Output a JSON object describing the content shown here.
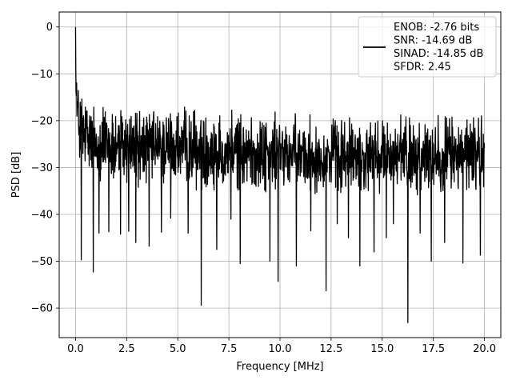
{
  "chart_data": {
    "type": "line",
    "xlabel": "Frequency [MHz]",
    "ylabel": "PSD [dB]",
    "xlim": [
      -0.8,
      20.8
    ],
    "ylim": [
      -66.3,
      3.2
    ],
    "x_ticks": [
      0.0,
      2.5,
      5.0,
      7.5,
      10.0,
      12.5,
      15.0,
      17.5,
      20.0
    ],
    "x_tick_labels": [
      "0.0",
      "2.5",
      "5.0",
      "7.5",
      "10.0",
      "12.5",
      "15.0",
      "17.5",
      "20.0"
    ],
    "y_ticks": [
      0,
      -10,
      -20,
      -30,
      -40,
      -50,
      -60
    ],
    "y_tick_labels": [
      "0",
      "−10",
      "−20",
      "−30",
      "−40",
      "−50",
      "−60"
    ],
    "grid": true,
    "legend_position": "top-right",
    "legend_lines": [
      "ENOB: -2.76 bits",
      "SNR: -14.69 dB",
      "SINAD: -14.85 dB",
      "SFDR: 2.45"
    ],
    "series": [
      {
        "color": "#000000",
        "x_start": 0.0,
        "x_end": 20.0,
        "shape_note": "dense noise spectrum; spike to 0 dB at DC, decaying into a band fluctuating roughly between -17 and -37 dB",
        "band_top": [
          [
            0.0,
            0.0
          ],
          [
            0.1,
            -10.0
          ],
          [
            0.3,
            -12.0
          ],
          [
            1.0,
            -15.0
          ],
          [
            4.0,
            -16.5
          ],
          [
            8.0,
            -17.5
          ],
          [
            12.0,
            -18.5
          ],
          [
            16.0,
            -18.0
          ],
          [
            20.0,
            -17.5
          ]
        ],
        "band_bottom": [
          [
            0.0,
            -25.0
          ],
          [
            0.3,
            -34.0
          ],
          [
            1.0,
            -35.0
          ],
          [
            5.0,
            -35.5
          ],
          [
            10.0,
            -36.5
          ],
          [
            15.0,
            -37.0
          ],
          [
            20.0,
            -36.5
          ]
        ],
        "dips": [
          [
            0.28,
            -49.7
          ],
          [
            0.87,
            -52.3
          ],
          [
            1.15,
            -44.0
          ],
          [
            1.62,
            -43.7
          ],
          [
            2.2,
            -44.2
          ],
          [
            2.6,
            -43.6
          ],
          [
            2.95,
            -46.0
          ],
          [
            3.6,
            -46.8
          ],
          [
            4.2,
            -43.8
          ],
          [
            4.65,
            -40.8
          ],
          [
            5.5,
            -44.0
          ],
          [
            6.15,
            -59.4
          ],
          [
            6.9,
            -47.5
          ],
          [
            7.6,
            -41.0
          ],
          [
            8.05,
            -50.5
          ],
          [
            9.5,
            -50.0
          ],
          [
            9.9,
            -54.3
          ],
          [
            10.8,
            -51.0
          ],
          [
            11.5,
            -43.5
          ],
          [
            12.25,
            -56.3
          ],
          [
            12.8,
            -42.0
          ],
          [
            13.35,
            -45.0
          ],
          [
            13.9,
            -51.0
          ],
          [
            14.6,
            -48.0
          ],
          [
            15.2,
            -45.0
          ],
          [
            15.55,
            -42.0
          ],
          [
            16.25,
            -63.1
          ],
          [
            16.85,
            -44.0
          ],
          [
            17.4,
            -50.0
          ],
          [
            18.05,
            -46.0
          ],
          [
            18.95,
            -50.4
          ],
          [
            19.8,
            -48.7
          ]
        ]
      }
    ]
  }
}
